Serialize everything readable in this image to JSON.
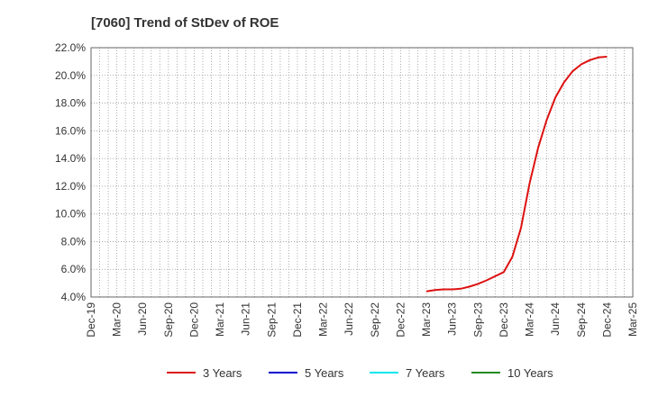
{
  "chart_data": {
    "type": "line",
    "title": "[7060]  Trend of StDev of ROE",
    "xlabel": "",
    "ylabel": "",
    "x_tick_labels": [
      "Dec-19",
      "Mar-20",
      "Jun-20",
      "Sep-20",
      "Dec-20",
      "Mar-21",
      "Jun-21",
      "Sep-21",
      "Dec-21",
      "Mar-22",
      "Jun-22",
      "Sep-22",
      "Dec-22",
      "Mar-23",
      "Jun-23",
      "Sep-23",
      "Dec-23",
      "Mar-24",
      "Jun-24",
      "Sep-24",
      "Dec-24",
      "Mar-25"
    ],
    "y_tick_labels": [
      "4.0%",
      "6.0%",
      "8.0%",
      "10.0%",
      "12.0%",
      "14.0%",
      "16.0%",
      "18.0%",
      "20.0%",
      "22.0%"
    ],
    "ylim": [
      4.0,
      22.0
    ],
    "grid": true,
    "legend_position": "bottom",
    "series": [
      {
        "name": "3 Years",
        "color": "#dd1111",
        "x": [
          "Mar-23",
          "Apr-23",
          "May-23",
          "Jun-23",
          "Jul-23",
          "Aug-23",
          "Sep-23",
          "Oct-23",
          "Nov-23",
          "Dec-23",
          "Jan-24",
          "Feb-24",
          "Mar-24",
          "Apr-24",
          "May-24",
          "Jun-24",
          "Jul-24",
          "Aug-24",
          "Sep-24",
          "Oct-24",
          "Nov-24",
          "Dec-24"
        ],
        "values": [
          4.4,
          4.5,
          4.55,
          4.55,
          4.6,
          4.75,
          4.95,
          5.2,
          5.5,
          5.8,
          6.9,
          9.0,
          12.2,
          14.8,
          16.8,
          18.4,
          19.5,
          20.3,
          20.8,
          21.1,
          21.3,
          21.35
        ]
      },
      {
        "name": "5 Years",
        "color": "#0000cc",
        "x": [],
        "values": []
      },
      {
        "name": "7 Years",
        "color": "#00e5ee",
        "x": [],
        "values": []
      },
      {
        "name": "10 Years",
        "color": "#228b22",
        "x": [],
        "values": []
      }
    ]
  }
}
